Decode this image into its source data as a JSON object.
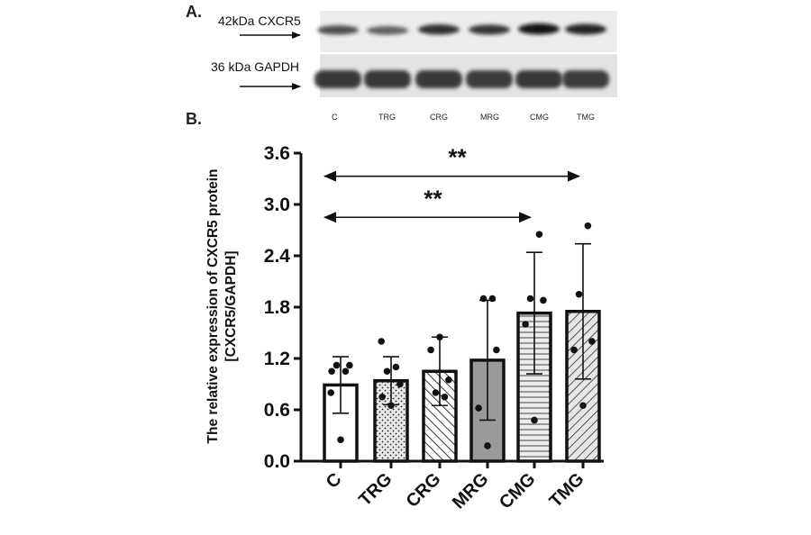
{
  "panel_a": {
    "label": "A.",
    "markers": [
      "42kDa CXCR5",
      "36 kDa GAPDH"
    ],
    "lanes": [
      "C",
      "TRG",
      "CRG",
      "MRG",
      "CMG",
      "TMG"
    ],
    "cxcr5_band_intensity": [
      0.55,
      0.4,
      0.75,
      0.7,
      0.95,
      0.85
    ],
    "gapdh_band_intensity": [
      0.92,
      0.92,
      0.92,
      0.9,
      0.92,
      0.9
    ]
  },
  "panel_b": {
    "label": "B."
  },
  "chart_data": {
    "type": "bar",
    "title": "",
    "xlabel": "",
    "ylabel_line1": "The relative expression of CXCR5 protein",
    "ylabel_line2": "[CXCR5/GAPDH]",
    "ylim": [
      0,
      3.6
    ],
    "yticks": [
      "0.0",
      "0.6",
      "1.2",
      "1.8",
      "2.4",
      "3.0",
      "3.6"
    ],
    "categories": [
      "C",
      "TRG",
      "CRG",
      "MRG",
      "CMG",
      "TMG"
    ],
    "values": [
      0.89,
      0.94,
      1.05,
      1.18,
      1.73,
      1.75
    ],
    "sd": [
      0.33,
      0.28,
      0.4,
      0.7,
      0.71,
      0.79
    ],
    "points": [
      [
        0.25,
        1.05,
        1.12,
        1.12,
        1.05,
        0.8
      ],
      [
        0.65,
        0.75,
        0.9,
        1.05,
        1.1,
        1.4
      ],
      [
        1.45,
        1.3,
        0.95,
        0.8,
        0.75
      ],
      [
        0.18,
        0.62,
        1.3,
        1.9,
        1.9
      ],
      [
        0.48,
        1.6,
        1.88,
        1.9,
        2.65
      ],
      [
        0.65,
        1.3,
        1.4,
        1.95,
        2.75
      ]
    ],
    "patterns": [
      "white",
      "dots",
      "diag-back",
      "gray",
      "horizontal",
      "diag-fwd"
    ],
    "significance": [
      {
        "label": "**",
        "from": "C",
        "to": "TMG",
        "y": 3.33
      },
      {
        "label": "**",
        "from": "C",
        "to": "CMG",
        "y": 2.85
      }
    ],
    "grid": false,
    "legend": "none"
  }
}
